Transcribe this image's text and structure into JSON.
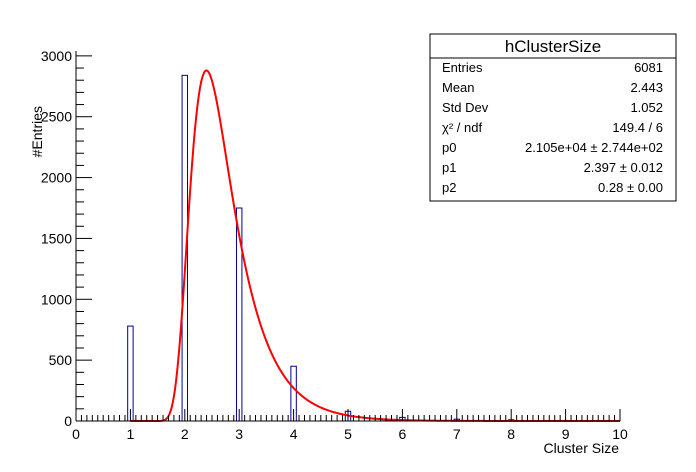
{
  "chart_data": {
    "type": "bar",
    "title": "",
    "xlabel": "Cluster Size",
    "ylabel": "#Entries",
    "xlim": [
      0,
      10
    ],
    "ylim": [
      0,
      3000
    ],
    "x_ticks": [
      "0",
      "1",
      "2",
      "3",
      "4",
      "5",
      "6",
      "7",
      "8",
      "9",
      "10"
    ],
    "y_ticks": [
      "0",
      "500",
      "1000",
      "1500",
      "2000",
      "2500",
      "3000"
    ],
    "grid": false,
    "legend": "none",
    "histogram": {
      "x": [
        1,
        2,
        3,
        4,
        5,
        6,
        7,
        8,
        9
      ],
      "values": [
        780,
        2840,
        1750,
        450,
        80,
        30,
        15,
        10,
        5
      ],
      "bin_width": 0.1,
      "color": "#000099"
    },
    "fit": {
      "p0": 21050,
      "p1": 2.397,
      "p2": 0.28,
      "x_range": [
        1,
        10
      ],
      "color": "#ff0000"
    },
    "stats_box": {
      "title": "hClusterSize",
      "position": "top-right",
      "rows": [
        {
          "label": "Entries",
          "value": "6081"
        },
        {
          "label": "Mean",
          "value": "2.443"
        },
        {
          "label": "Std Dev",
          "value": "1.052"
        },
        {
          "label": "χ² / ndf",
          "value": "149.4 / 6"
        },
        {
          "label": "p0",
          "value": "2.105e+04 ± 2.744e+02"
        },
        {
          "label": "p1",
          "value": "2.397 ± 0.012"
        },
        {
          "label": "p2",
          "value": "0.28 ± 0.00"
        }
      ]
    }
  }
}
